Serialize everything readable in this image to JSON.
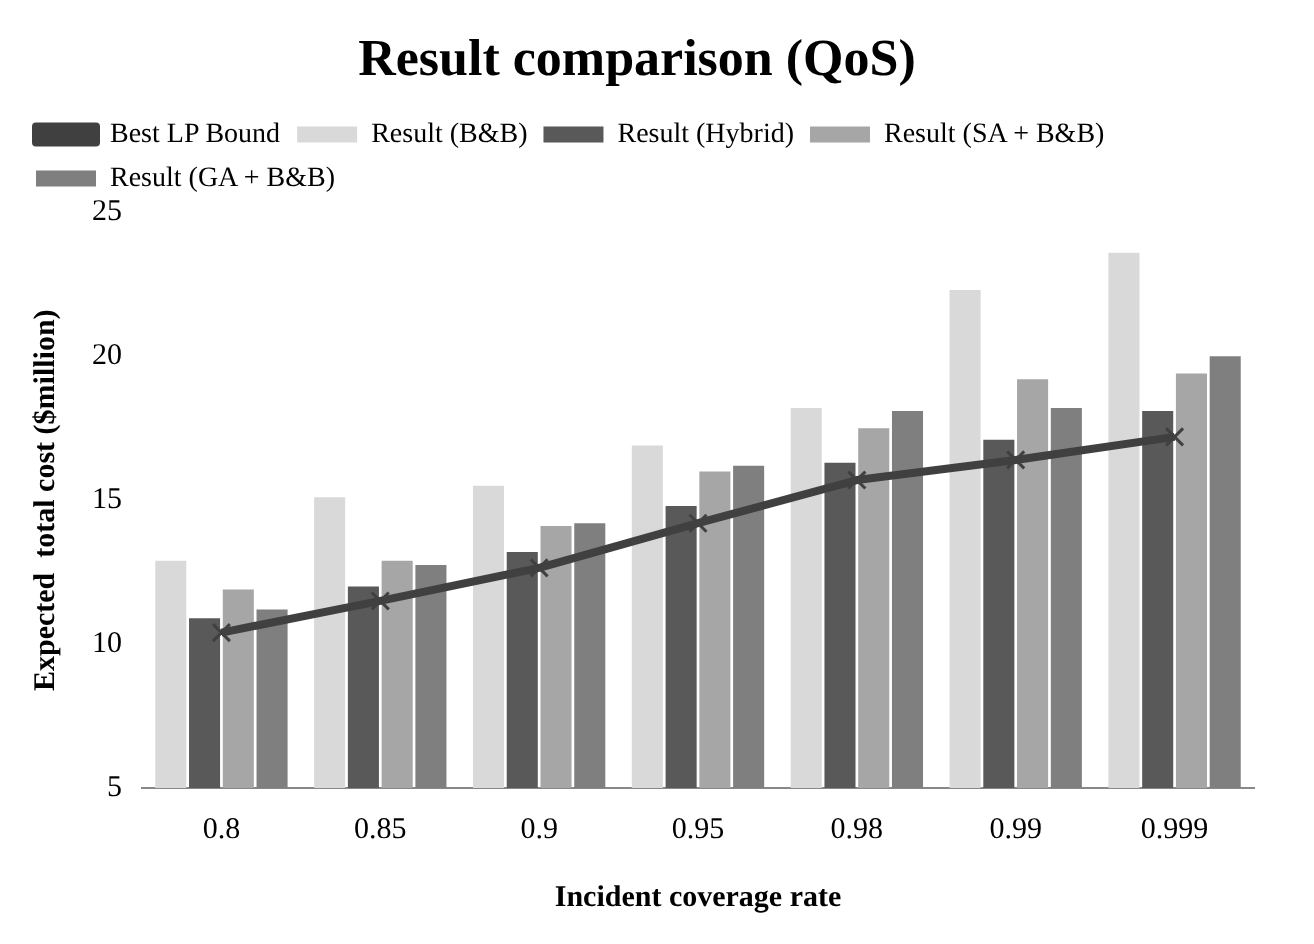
{
  "chart_data": {
    "type": "bar",
    "title": "Result comparison (QoS)",
    "xlabel": "Incident coverage rate",
    "ylabel": "Expected  total cost ($million)",
    "categories": [
      "0.8",
      "0.85",
      "0.9",
      "0.95",
      "0.98",
      "0.99",
      "0.999"
    ],
    "series": [
      {
        "name": "Result (B&B)",
        "color": "#d9d9d9",
        "values": [
          12.9,
          15.1,
          15.5,
          16.9,
          18.2,
          22.3,
          23.6
        ]
      },
      {
        "name": "Result (Hybrid)",
        "color": "#595959",
        "values": [
          10.9,
          12.0,
          13.2,
          14.8,
          16.3,
          17.1,
          18.1
        ]
      },
      {
        "name": "Result (SA + B&B)",
        "color": "#a6a6a6",
        "values": [
          11.9,
          12.9,
          14.1,
          16.0,
          17.5,
          19.2,
          19.4
        ]
      },
      {
        "name": "Result (GA + B&B)",
        "color": "#7f7f7f",
        "values": [
          11.2,
          12.75,
          14.2,
          16.2,
          18.1,
          18.2,
          20.0
        ]
      },
      {
        "name": "Best LP Bound",
        "type": "line",
        "color": "#404040",
        "marker": "cross",
        "values": [
          10.4,
          11.5,
          12.65,
          14.2,
          15.7,
          16.4,
          17.2
        ]
      }
    ],
    "ylim": [
      5,
      25
    ],
    "yticks": [
      5,
      10,
      15,
      20,
      25
    ],
    "grid": false,
    "legend": "top left"
  }
}
